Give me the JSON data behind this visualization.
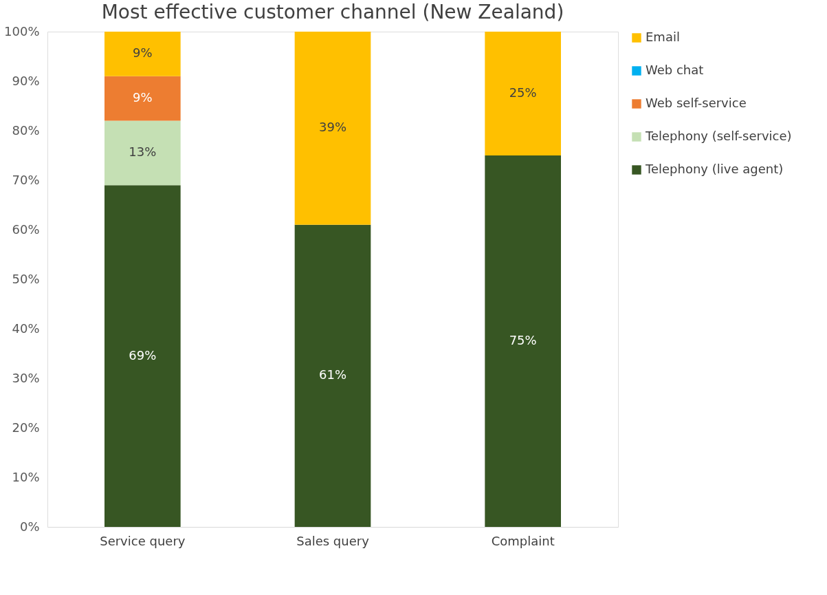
{
  "chart_data": {
    "type": "bar",
    "title": "Most effective customer channel (New Zealand)",
    "categories": [
      "Service query",
      "Sales query",
      "Complaint"
    ],
    "stacked": true,
    "series": [
      {
        "name": "Telephony (live agent)",
        "color": "#375623",
        "values": [
          69,
          61,
          75
        ],
        "value_labels": [
          "69%",
          "61%",
          "75%"
        ]
      },
      {
        "name": "Telephony (self-service)",
        "color": "#c5e0b4",
        "values": [
          13,
          0,
          0
        ],
        "value_labels": [
          "13%",
          null,
          null
        ]
      },
      {
        "name": "Web self-service",
        "color": "#ed7d31",
        "values": [
          9,
          0,
          0
        ],
        "value_labels": [
          "9%",
          null,
          null
        ]
      },
      {
        "name": "Web chat",
        "color": "#00b0f0",
        "values": [
          0,
          0,
          0
        ],
        "value_labels": [
          null,
          null,
          null
        ]
      },
      {
        "name": "Email",
        "color": "#ffc000",
        "values": [
          9,
          39,
          25
        ],
        "value_labels": [
          "9%",
          "39%",
          "25%"
        ]
      }
    ],
    "ylim": [
      0,
      100
    ],
    "yticks": [
      {
        "value": 0,
        "label": "0%"
      },
      {
        "value": 10,
        "label": "10%"
      },
      {
        "value": 20,
        "label": "20%"
      },
      {
        "value": 30,
        "label": "30%"
      },
      {
        "value": 40,
        "label": "40%"
      },
      {
        "value": 50,
        "label": "50%"
      },
      {
        "value": 60,
        "label": "60%"
      },
      {
        "value": 70,
        "label": "70%"
      },
      {
        "value": 80,
        "label": "80%"
      },
      {
        "value": 90,
        "label": "90%"
      },
      {
        "value": 100,
        "label": "100%"
      }
    ],
    "grid": false,
    "legend": "right"
  }
}
